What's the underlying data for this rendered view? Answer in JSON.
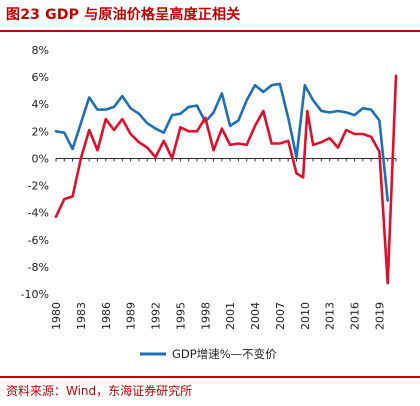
{
  "header": {
    "title": "图23  GDP 与原油价格呈高度正相关"
  },
  "footer": {
    "source": "资料来源：Wind，东海证券研究所"
  },
  "chart_data": {
    "type": "line",
    "title": "",
    "xlabel": "",
    "ylabel": "",
    "ylim": [
      -10,
      8
    ],
    "yticks": [
      -10,
      -8,
      -6,
      -4,
      -2,
      0,
      2,
      4,
      6,
      8
    ],
    "ytick_labels": [
      "-10%",
      "-8%",
      "-6%",
      "-4%",
      "-2%",
      "0%",
      "2%",
      "4%",
      "6%",
      "8%"
    ],
    "xlim": [
      1980,
      2021
    ],
    "xticks": [
      1980,
      1983,
      1986,
      1989,
      1992,
      1995,
      1998,
      2001,
      2004,
      2007,
      2010,
      2013,
      2016,
      2019
    ],
    "grid": false,
    "legend_position": "bottom",
    "series": [
      {
        "name": "GDP增速%—不变价",
        "color": "#1f6fb5",
        "points": [
          [
            1980,
            2.0
          ],
          [
            1981,
            1.9
          ],
          [
            1982,
            0.7
          ],
          [
            1983,
            2.6
          ],
          [
            1984,
            4.5
          ],
          [
            1985,
            3.6
          ],
          [
            1986,
            3.6
          ],
          [
            1987,
            3.8
          ],
          [
            1988,
            4.6
          ],
          [
            1989,
            3.7
          ],
          [
            1990,
            3.3
          ],
          [
            1991,
            2.6
          ],
          [
            1992,
            2.2
          ],
          [
            1993,
            1.9
          ],
          [
            1994,
            3.2
          ],
          [
            1995,
            3.3
          ],
          [
            1996,
            3.8
          ],
          [
            1997,
            3.9
          ],
          [
            1998,
            2.7
          ],
          [
            1999,
            3.4
          ],
          [
            2000,
            4.8
          ],
          [
            2001,
            2.4
          ],
          [
            2002,
            2.8
          ],
          [
            2003,
            4.3
          ],
          [
            2004,
            5.4
          ],
          [
            2005,
            4.9
          ],
          [
            2006,
            5.4
          ],
          [
            2007,
            5.5
          ],
          [
            2008,
            3.0
          ],
          [
            2009,
            0.1
          ],
          [
            2010,
            5.4
          ],
          [
            2011,
            4.3
          ],
          [
            2012,
            3.5
          ],
          [
            2013,
            3.4
          ],
          [
            2014,
            3.5
          ],
          [
            2015,
            3.4
          ],
          [
            2016,
            3.2
          ],
          [
            2017,
            3.7
          ],
          [
            2018,
            3.6
          ],
          [
            2019,
            2.8
          ],
          [
            2020,
            -3.1
          ]
        ]
      },
      {
        "name": "",
        "color": "#e0102c",
        "points": [
          [
            1980,
            -4.3
          ],
          [
            1981,
            -3.0
          ],
          [
            1982,
            -2.8
          ],
          [
            1983,
            0.0
          ],
          [
            1984,
            2.1
          ],
          [
            1985,
            0.6
          ],
          [
            1986,
            2.9
          ],
          [
            1987,
            2.1
          ],
          [
            1988,
            2.9
          ],
          [
            1989,
            1.8
          ],
          [
            1990,
            1.2
          ],
          [
            1991,
            0.8
          ],
          [
            1992,
            0.1
          ],
          [
            1993,
            1.3
          ],
          [
            1994,
            0.0
          ],
          [
            1995,
            2.3
          ],
          [
            1996,
            2.0
          ],
          [
            1997,
            2.0
          ],
          [
            1998,
            3.0
          ],
          [
            1999,
            0.6
          ],
          [
            2000,
            2.2
          ],
          [
            2001,
            1.0
          ],
          [
            2002,
            1.1
          ],
          [
            2003,
            1.0
          ],
          [
            2004,
            2.4
          ],
          [
            2005,
            3.5
          ],
          [
            2006,
            1.1
          ],
          [
            2007,
            1.1
          ],
          [
            2008,
            1.3
          ],
          [
            2009,
            -1.1
          ],
          [
            2009.8,
            -1.4
          ],
          [
            2010.3,
            3.5
          ],
          [
            2011,
            1.0
          ],
          [
            2012,
            1.2
          ],
          [
            2013,
            1.5
          ],
          [
            2014,
            0.8
          ],
          [
            2015,
            2.1
          ],
          [
            2016,
            1.8
          ],
          [
            2017,
            1.8
          ],
          [
            2018,
            1.6
          ],
          [
            2019,
            0.5
          ],
          [
            2020,
            -9.2
          ],
          [
            2021,
            6.1
          ]
        ]
      }
    ]
  }
}
